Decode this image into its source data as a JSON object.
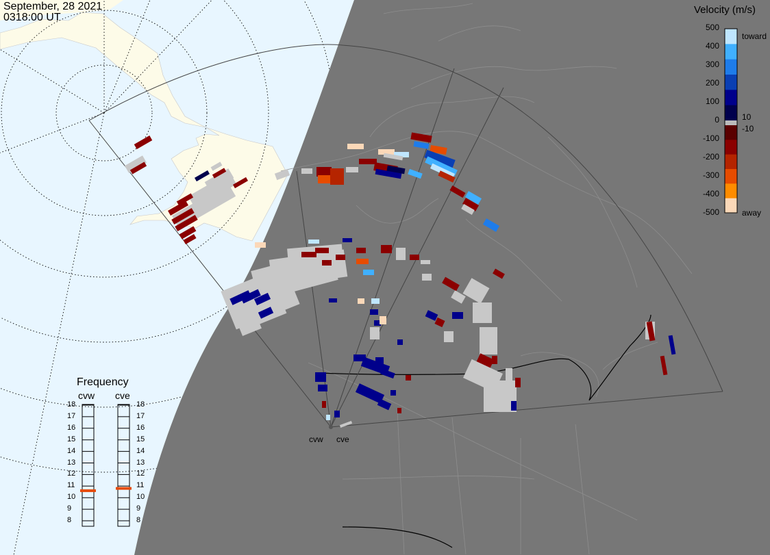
{
  "header": {
    "date": "September, 28 2021",
    "time": "0318:00 UT"
  },
  "colorbar": {
    "title": "Velocity (m/s)",
    "ticks": [
      "500",
      "400",
      "300",
      "200",
      "100",
      "10",
      "0",
      "-10",
      "-100",
      "-200",
      "-300",
      "-400",
      "-500"
    ],
    "toward_label": "toward",
    "away_label": "away",
    "colors": [
      "#fbd8b8",
      "#ff8c00",
      "#e64c00",
      "#b52400",
      "#8b0000",
      "#5a0000",
      "#00004d",
      "#00008b",
      "#0a3fb3",
      "#1e7cea",
      "#40b0ff",
      "#bfe6ff"
    ]
  },
  "frequency": {
    "title": "Frequency",
    "radars": [
      {
        "name": "cvw",
        "levels": [
          "18",
          "17",
          "16",
          "15",
          "14",
          "13",
          "12",
          "11",
          "10",
          "9",
          "8"
        ],
        "marker_mhz": 10.6
      },
      {
        "name": "cve",
        "levels": [
          "18",
          "17",
          "16",
          "15",
          "14",
          "13",
          "12",
          "11",
          "10",
          "9",
          "8"
        ],
        "marker_mhz": 10.8
      }
    ],
    "marker_color": "#e64c0c"
  },
  "sites": {
    "west": "cvw",
    "east": "cve"
  },
  "map_colors": {
    "ocean_day": "#e8f6ff",
    "land_day": "#fdfbe8",
    "night": "#777777",
    "ground_scatter": "#c8c8c8"
  }
}
